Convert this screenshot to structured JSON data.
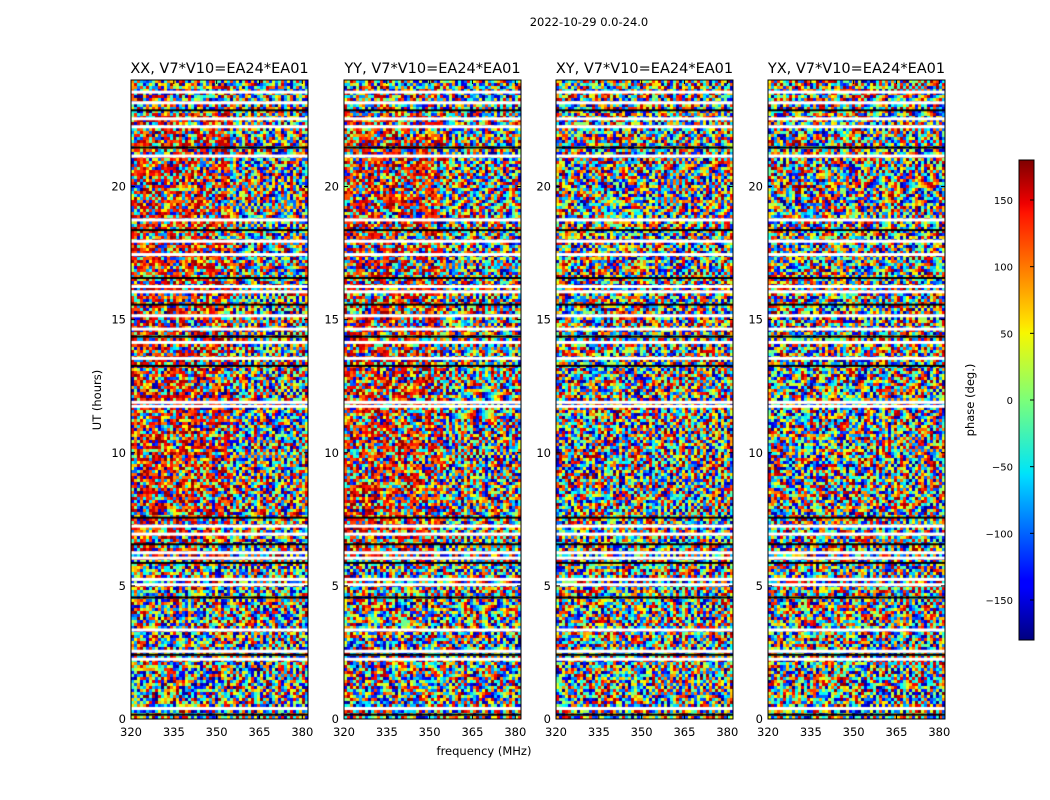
{
  "chart_data": {
    "type": "heatmap",
    "suptitle": "2022-10-29 0.0-24.0",
    "xlabel": "frequency (MHz)",
    "ylabel": "UT (hours)",
    "xlim": [
      320,
      382
    ],
    "ylim": [
      0,
      24
    ],
    "xticks": [
      320,
      335,
      350,
      365,
      380
    ],
    "yticks": [
      0,
      5,
      10,
      15,
      20
    ],
    "panels": [
      {
        "title": "XX, V7*V10=EA24*EA01",
        "polarization": "XX"
      },
      {
        "title": "YY, V7*V10=EA24*EA01",
        "polarization": "YY"
      },
      {
        "title": "XY, V7*V10=EA24*EA01",
        "polarization": "XY"
      },
      {
        "title": "YX, V7*V10=EA24*EA01",
        "polarization": "YX"
      }
    ],
    "colorbar": {
      "label": "phase (deg.)",
      "range": [
        -180,
        180
      ],
      "ticks": [
        150,
        100,
        50,
        0,
        -50,
        -100,
        -150
      ],
      "tick_labels": [
        "150",
        "100",
        "50",
        "0",
        "−50",
        "−100",
        "−150"
      ],
      "colormap": "jet"
    },
    "flagged_ut_hours": [
      0.2,
      0.45,
      2.3,
      2.45,
      2.6,
      3.4,
      4.6,
      5.1,
      5.3,
      5.9,
      6.1,
      6.3,
      6.6,
      7.0,
      7.3,
      7.6,
      11.8,
      11.95,
      13.3,
      13.6,
      14.2,
      14.4,
      14.7,
      15.2,
      15.6,
      16.1,
      16.3,
      16.6,
      17.5,
      18.0,
      18.4,
      18.8,
      21.2,
      21.5,
      22.3,
      22.6,
      22.9,
      23.2,
      23.6
    ]
  }
}
